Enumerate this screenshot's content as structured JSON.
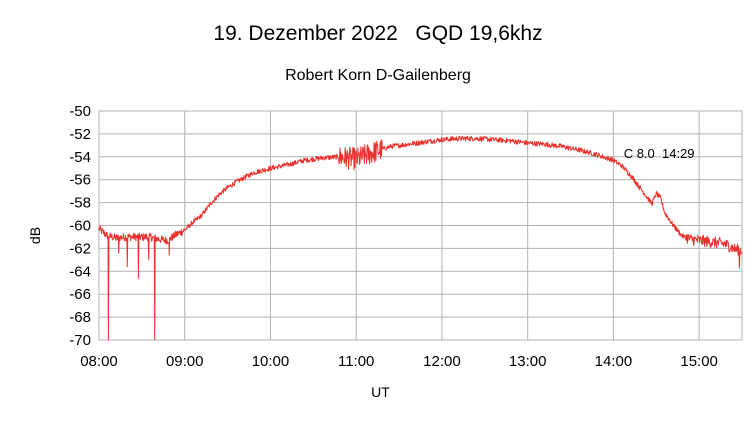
{
  "chart_data": {
    "type": "line",
    "title": "19. Dezember 2022   GQD 19,6khz",
    "subtitle": "Robert Korn D-Gailenberg",
    "xlabel": "UT",
    "ylabel": "dB",
    "xlim": [
      8.0,
      15.5
    ],
    "ylim": [
      -70,
      -50
    ],
    "grid": true,
    "x_ticks": [
      {
        "value": 8,
        "label": "08:00"
      },
      {
        "value": 9,
        "label": "09:00"
      },
      {
        "value": 10,
        "label": "10:00"
      },
      {
        "value": 11,
        "label": "11:00"
      },
      {
        "value": 12,
        "label": "12:00"
      },
      {
        "value": 13,
        "label": "13:00"
      },
      {
        "value": 14,
        "label": "14:00"
      },
      {
        "value": 15,
        "label": "15:00"
      }
    ],
    "y_ticks": [
      {
        "value": -50,
        "label": "-50"
      },
      {
        "value": -52,
        "label": "-52"
      },
      {
        "value": -54,
        "label": "-54"
      },
      {
        "value": -56,
        "label": "-56"
      },
      {
        "value": -58,
        "label": "-58"
      },
      {
        "value": -60,
        "label": "-60"
      },
      {
        "value": -62,
        "label": "-62"
      },
      {
        "value": -64,
        "label": "-64"
      },
      {
        "value": -66,
        "label": "-66"
      },
      {
        "value": -68,
        "label": "-68"
      },
      {
        "value": -70,
        "label": "-70"
      }
    ],
    "annotation": {
      "text": "C 8.0  14:29",
      "x": 14.12,
      "y": -54.1
    },
    "series": [
      {
        "name": "GQD 19,6khz",
        "color": "#e8302c",
        "x": [
          8.0,
          8.05,
          8.1,
          8.15,
          8.2,
          8.3,
          8.4,
          8.5,
          8.6,
          8.7,
          8.8,
          8.9,
          9.0,
          9.1,
          9.2,
          9.3,
          9.4,
          9.5,
          9.6,
          9.7,
          9.8,
          9.9,
          10.0,
          10.2,
          10.4,
          10.6,
          10.8,
          11.0,
          11.2,
          11.4,
          11.6,
          11.8,
          12.0,
          12.2,
          12.4,
          12.6,
          12.8,
          13.0,
          13.2,
          13.4,
          13.6,
          13.8,
          14.0,
          14.1,
          14.2,
          14.3,
          14.4,
          14.45,
          14.5,
          14.55,
          14.6,
          14.7,
          14.8,
          14.9,
          15.0,
          15.1,
          15.2,
          15.3,
          15.4,
          15.5
        ],
        "y": [
          -60.3,
          -60.6,
          -60.9,
          -61.0,
          -61.1,
          -61.0,
          -61.0,
          -61.0,
          -61.0,
          -61.2,
          -61.3,
          -60.8,
          -60.4,
          -59.7,
          -59.1,
          -58.1,
          -57.3,
          -56.7,
          -56.2,
          -55.8,
          -55.4,
          -55.2,
          -55.0,
          -54.7,
          -54.3,
          -54.1,
          -54.0,
          -54.2,
          -53.6,
          -53.1,
          -52.9,
          -52.7,
          -52.5,
          -52.4,
          -52.4,
          -52.5,
          -52.6,
          -52.8,
          -52.9,
          -53.1,
          -53.4,
          -53.8,
          -54.3,
          -54.8,
          -55.6,
          -56.6,
          -57.6,
          -58.1,
          -57.2,
          -57.6,
          -58.9,
          -60.0,
          -60.9,
          -61.2,
          -61.3,
          -61.4,
          -61.5,
          -61.6,
          -62.0,
          -62.2
        ]
      }
    ],
    "dropouts": [
      {
        "x": 8.11,
        "y": -70.0
      },
      {
        "x": 8.23,
        "y": -62.4
      },
      {
        "x": 8.33,
        "y": -63.6
      },
      {
        "x": 8.46,
        "y": -64.6
      },
      {
        "x": 8.58,
        "y": -63.0
      },
      {
        "x": 8.65,
        "y": -70.0
      },
      {
        "x": 8.82,
        "y": -62.6
      },
      {
        "x": 15.47,
        "y": -63.7
      }
    ],
    "noise_bands": [
      {
        "x_start": 8.0,
        "x_end": 9.0,
        "amplitude_db": 0.35
      },
      {
        "x_start": 10.8,
        "x_end": 11.3,
        "amplitude_db": 1.0
      },
      {
        "x_start": 14.85,
        "x_end": 15.5,
        "amplitude_db": 0.5
      }
    ]
  }
}
